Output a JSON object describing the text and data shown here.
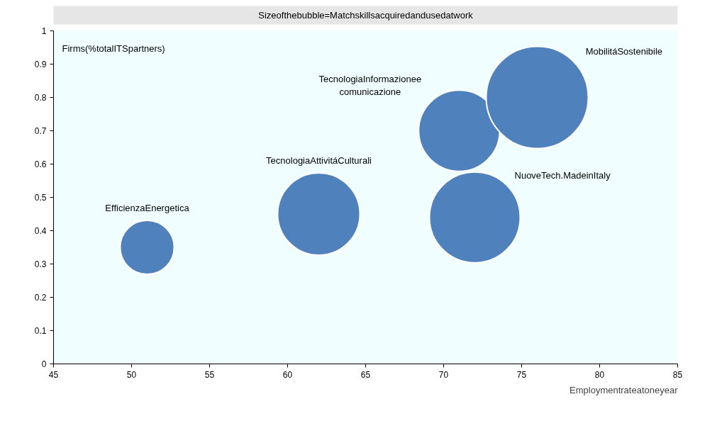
{
  "chart_data": {
    "type": "bubble",
    "xlabel": "Employmentrateatoneyear",
    "ylabel": "Firms(%totalITSpartners)",
    "legend_title": "Sizeofthebubble=Matchskillsacquiredandusedatwork",
    "series": [
      {
        "name": "EfficienzaEnergetica",
        "color": "#4f81bd",
        "x": [
          51
        ],
        "values": [
          0.35
        ],
        "sizes": [
          0.28
        ]
      },
      {
        "name": "TecnologiaAttivitáCulturali",
        "color": "#4f81bd",
        "x": [
          62
        ],
        "values": [
          0.45
        ],
        "sizes": [
          0.65
        ]
      },
      {
        "name": "TecnologiaInformazionee\ncomunicazione",
        "color": "#4f81bd",
        "x": [
          71
        ],
        "values": [
          0.7
        ],
        "sizes": [
          0.63
        ]
      },
      {
        "name": "NuoveTech.MadeinItaly",
        "color": "#4f81bd",
        "x": [
          72
        ],
        "values": [
          0.44
        ],
        "sizes": [
          0.79
        ]
      },
      {
        "name": "MobilitáSostenibile",
        "color": "#4f81bd",
        "x": [
          76
        ],
        "values": [
          0.8
        ],
        "sizes": [
          1
        ]
      }
    ],
    "xlim": [
      45,
      85
    ],
    "xticks": [
      45,
      50,
      55,
      60,
      65,
      70,
      75,
      80,
      85
    ],
    "ylim": [
      0,
      1
    ],
    "yticks": [
      0,
      0.1,
      0.2,
      0.3,
      0.4,
      0.5,
      0.6,
      0.7,
      0.8,
      0.9,
      1
    ],
    "legend": "top",
    "grid": false
  }
}
